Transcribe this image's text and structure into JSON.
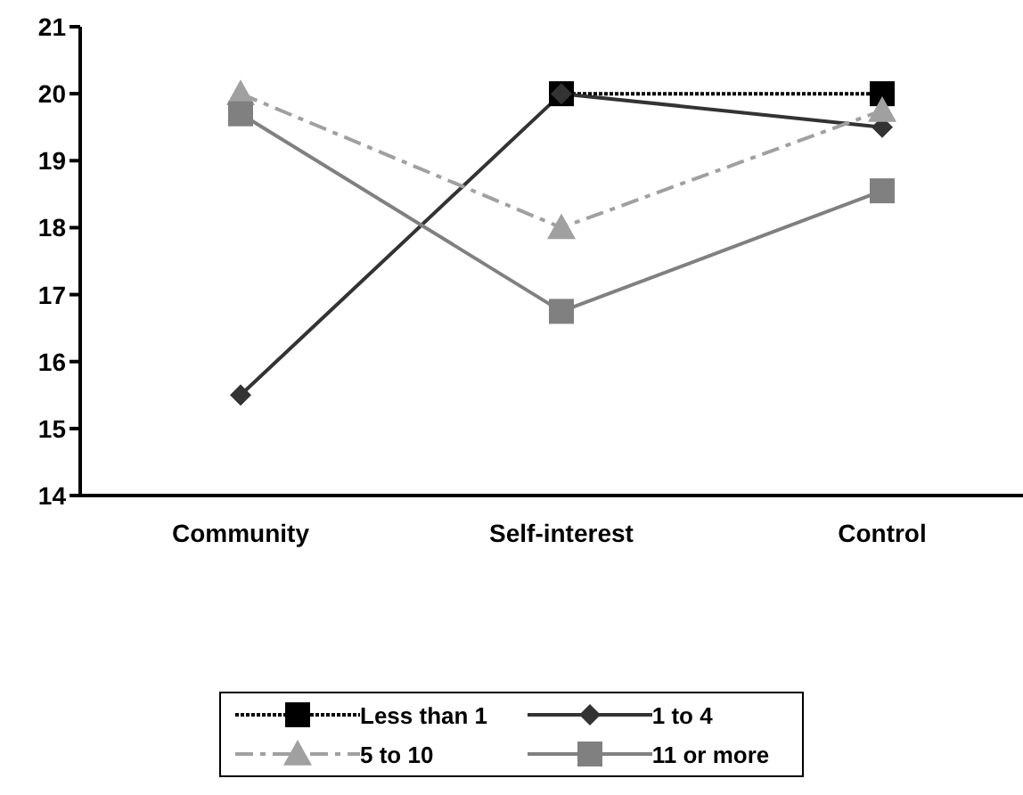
{
  "chart_data": {
    "type": "line",
    "categories": [
      "Community",
      "Self-interest",
      "Control"
    ],
    "series": [
      {
        "name": "Less than 1",
        "color": "#000000",
        "values": [
          null,
          20,
          20
        ],
        "marker": "square",
        "line_style": "dotted"
      },
      {
        "name": "1 to 4",
        "color": "#333333",
        "values": [
          15.5,
          20,
          19.5
        ],
        "marker": "diamond",
        "line_style": "solid"
      },
      {
        "name": "5 to 10",
        "color": "#a0a0a0",
        "values": [
          20,
          18,
          19.75
        ],
        "marker": "triangle",
        "line_style": "dashed"
      },
      {
        "name": "11 or more",
        "color": "#808080",
        "values": [
          19.7,
          16.75,
          18.55
        ],
        "marker": "square",
        "line_style": "solid"
      }
    ],
    "ylim": [
      14,
      21
    ],
    "yticks": [
      14,
      15,
      16,
      17,
      18,
      19,
      20,
      21
    ],
    "grid": false,
    "legend": "bottom"
  }
}
